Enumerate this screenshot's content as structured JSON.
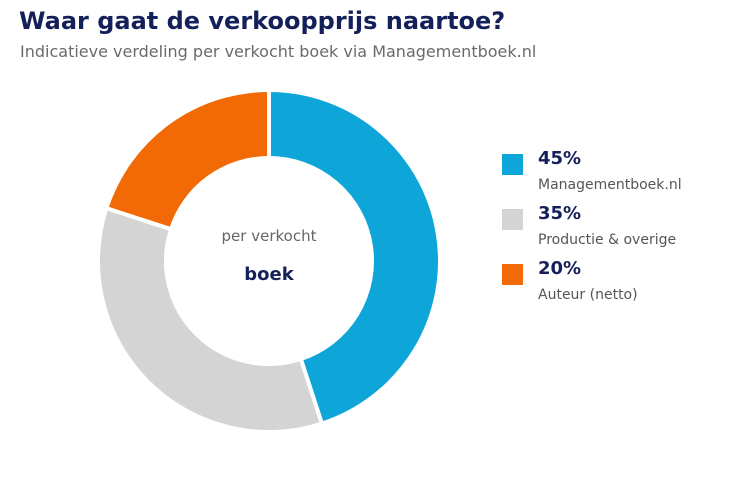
{
  "title": "Waar gaat de verkoopprijs naartoe?",
  "subtitle": "Indicatieve verdeling per verkocht boek via Managementboek.nl",
  "center": {
    "line1": "per verkocht",
    "line2": "boek"
  },
  "chart_data": {
    "type": "pie",
    "donut": true,
    "legend_position": "right",
    "categories": [
      "Managementboek.nl",
      "Productie & overige",
      "Auteur (netto)"
    ],
    "values": [
      45,
      35,
      20
    ],
    "value_labels": [
      "45%",
      "35%",
      "20%"
    ],
    "colors": [
      "#0ea5d8",
      "#d4d4d4",
      "#f16a06"
    ]
  },
  "legend": [
    {
      "value": "45%",
      "label": "Managementboek.nl",
      "color": "#0ea5d8"
    },
    {
      "value": "35%",
      "label": "Productie & overige",
      "color": "#d4d4d4"
    },
    {
      "value": "20%",
      "label": "Auteur (netto)",
      "color": "#f16a06"
    }
  ],
  "colors": {
    "title": "#14205a",
    "subtitle": "#6a6a6a",
    "center_text_light": "#666666",
    "center_text_bold": "#14205a"
  }
}
